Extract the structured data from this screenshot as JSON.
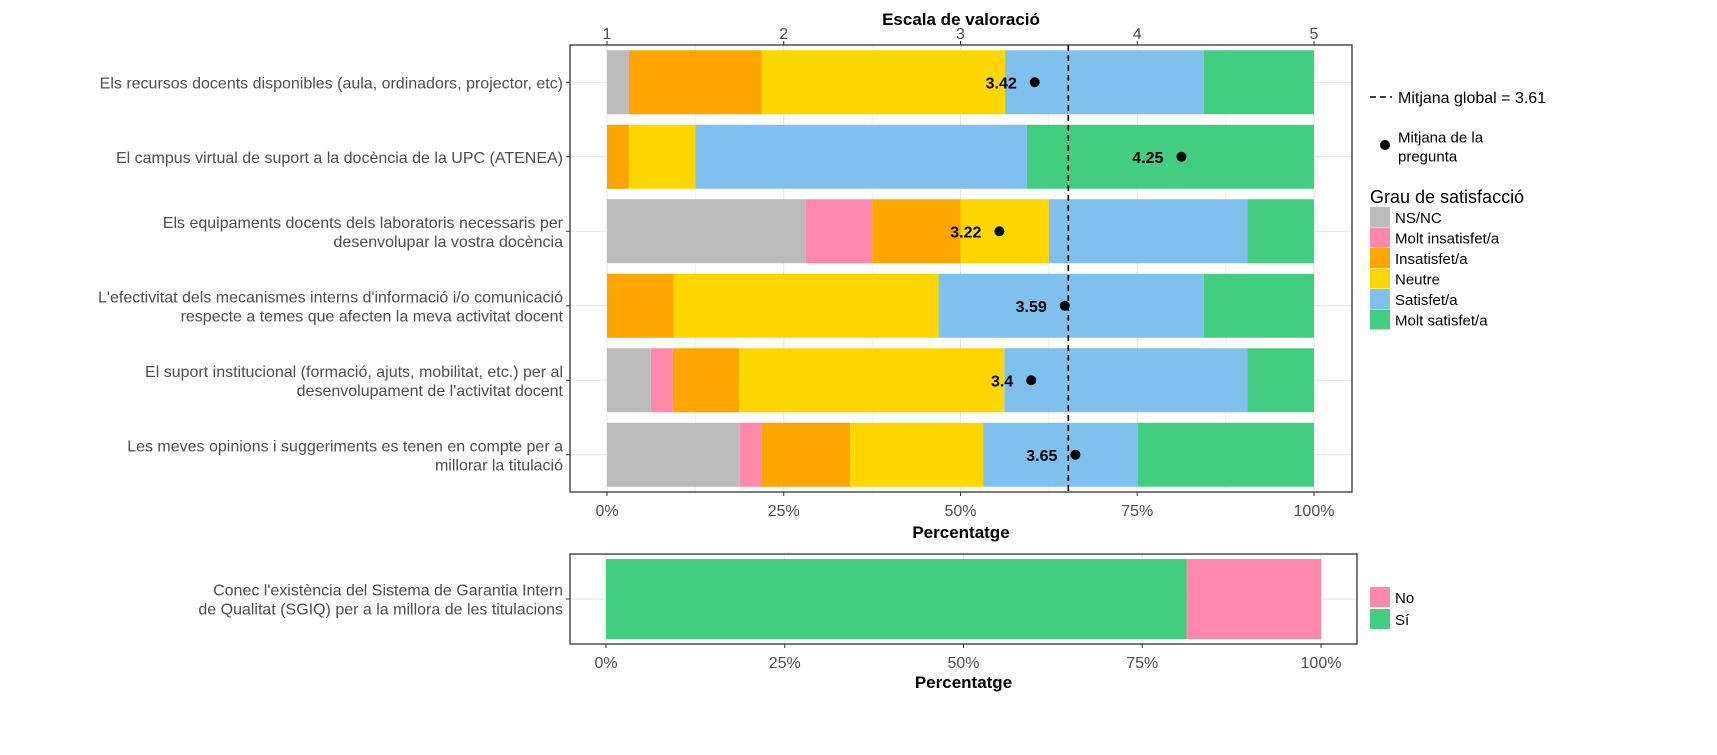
{
  "chart_data": [
    {
      "type": "bar",
      "orientation": "horizontal",
      "stacked": true,
      "top_axis_title": "Escala de valoració",
      "top_axis_ticks": [
        "1",
        "2",
        "3",
        "4",
        "5"
      ],
      "top_axis_range": [
        1,
        5
      ],
      "xlabel": "Percentatge",
      "x_tick_labels": [
        "0%",
        "25%",
        "50%",
        "75%",
        "100%"
      ],
      "xlim": [
        0,
        100
      ],
      "grid": true,
      "legend_title": "Grau de satisfacció",
      "legend_position": "right",
      "categories": [
        "Els recursos docents disponibles (aula, ordinadors, projector, etc)",
        "El campus virtual de suport a la docència de la UPC (ATENEA)",
        "Els equipaments docents dels laboratoris necessaris per\ndesenvolupar la vostra docència",
        "L'efectivitat dels mecanismes interns d'informació i/o comunicació\nrespecte a temes que afecten la meva activitat docent",
        "El suport institucional (formació, ajuts, mobilitat, etc.) per al\ndesenvolupament de l'activitat docent",
        "Les meves opinions i suggeriments es tenen en compte per a\nmillorar la titulació"
      ],
      "series": [
        {
          "name": "NS/NC",
          "color": "#BBBBBB",
          "values": [
            3.1,
            0,
            28.1,
            0,
            6.2,
            18.8
          ]
        },
        {
          "name": "Molt insatisfet/a",
          "color": "#FF88AD",
          "values": [
            0,
            0,
            9.4,
            0,
            3.1,
            3.1
          ]
        },
        {
          "name": "Insatisfet/a",
          "color": "#FFA500",
          "values": [
            18.8,
            3.1,
            12.5,
            9.4,
            9.4,
            12.5
          ]
        },
        {
          "name": "Neutre",
          "color": "#FFD700",
          "values": [
            34.4,
            9.4,
            12.5,
            37.5,
            37.5,
            18.8
          ]
        },
        {
          "name": "Satisfet/a",
          "color": "#80C0EC",
          "values": [
            28.1,
            46.9,
            28.1,
            37.5,
            34.4,
            21.9
          ]
        },
        {
          "name": "Molt satisfet/a",
          "color": "#43CD80",
          "values": [
            15.6,
            40.6,
            9.4,
            15.6,
            9.4,
            24.9
          ]
        }
      ],
      "question_means": [
        3.42,
        4.25,
        3.22,
        3.59,
        3.4,
        3.65
      ],
      "question_mean_legend": "Mitjana de la\npregunta",
      "global_mean": 3.61,
      "global_mean_legend": "Mitjana global =  3.61"
    },
    {
      "type": "bar",
      "orientation": "horizontal",
      "stacked": true,
      "xlabel": "Percentatge",
      "x_tick_labels": [
        "0%",
        "25%",
        "50%",
        "75%",
        "100%"
      ],
      "xlim": [
        0,
        100
      ],
      "grid": true,
      "legend_position": "right",
      "categories": [
        "Conec l'existència del Sistema de Garantia Intern\nde Qualitat (SGIQ) per a la millora de les titulacions"
      ],
      "series": [
        {
          "name": "Sí",
          "color": "#43CD80",
          "values": [
            81.2
          ]
        },
        {
          "name": "No",
          "color": "#FF88AD",
          "values": [
            18.8
          ]
        }
      ],
      "legend_order": [
        "No",
        "Sí"
      ]
    }
  ]
}
